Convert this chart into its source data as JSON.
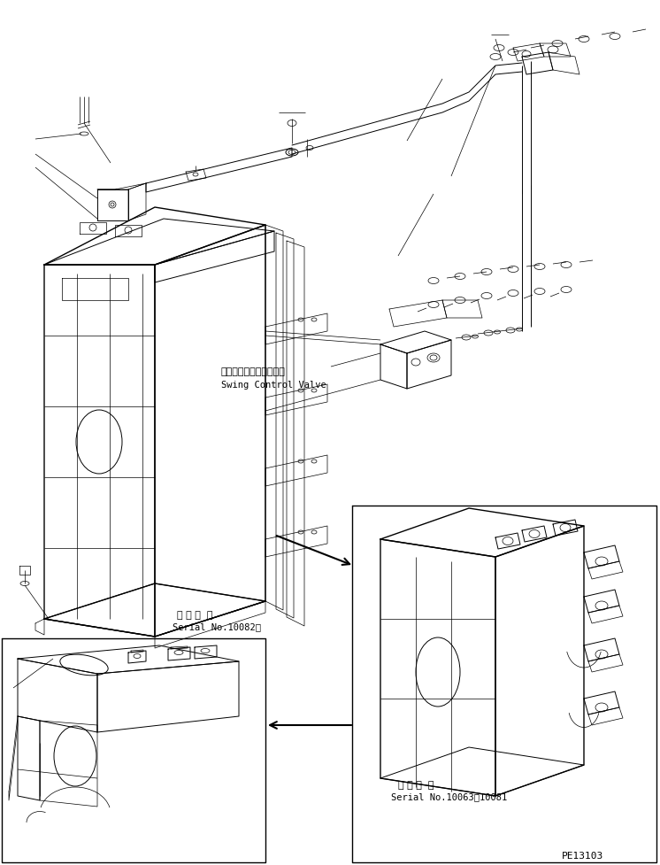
{
  "bg_color": "#ffffff",
  "line_color": "#000000",
  "text_color": "#000000",
  "label_swing_jp": "旋回コントロールバルブ",
  "label_swing_en": "Swing Control Valve",
  "label_serial1_jp": "適 用 号  機",
  "label_serial1_en": "Serial No.10082～",
  "label_serial2_jp": "適 用 号  機",
  "label_serial2_en": "Serial No.10063～10081",
  "part_number": "PE13103",
  "figsize": [
    7.46,
    9.78
  ],
  "dpi": 100
}
